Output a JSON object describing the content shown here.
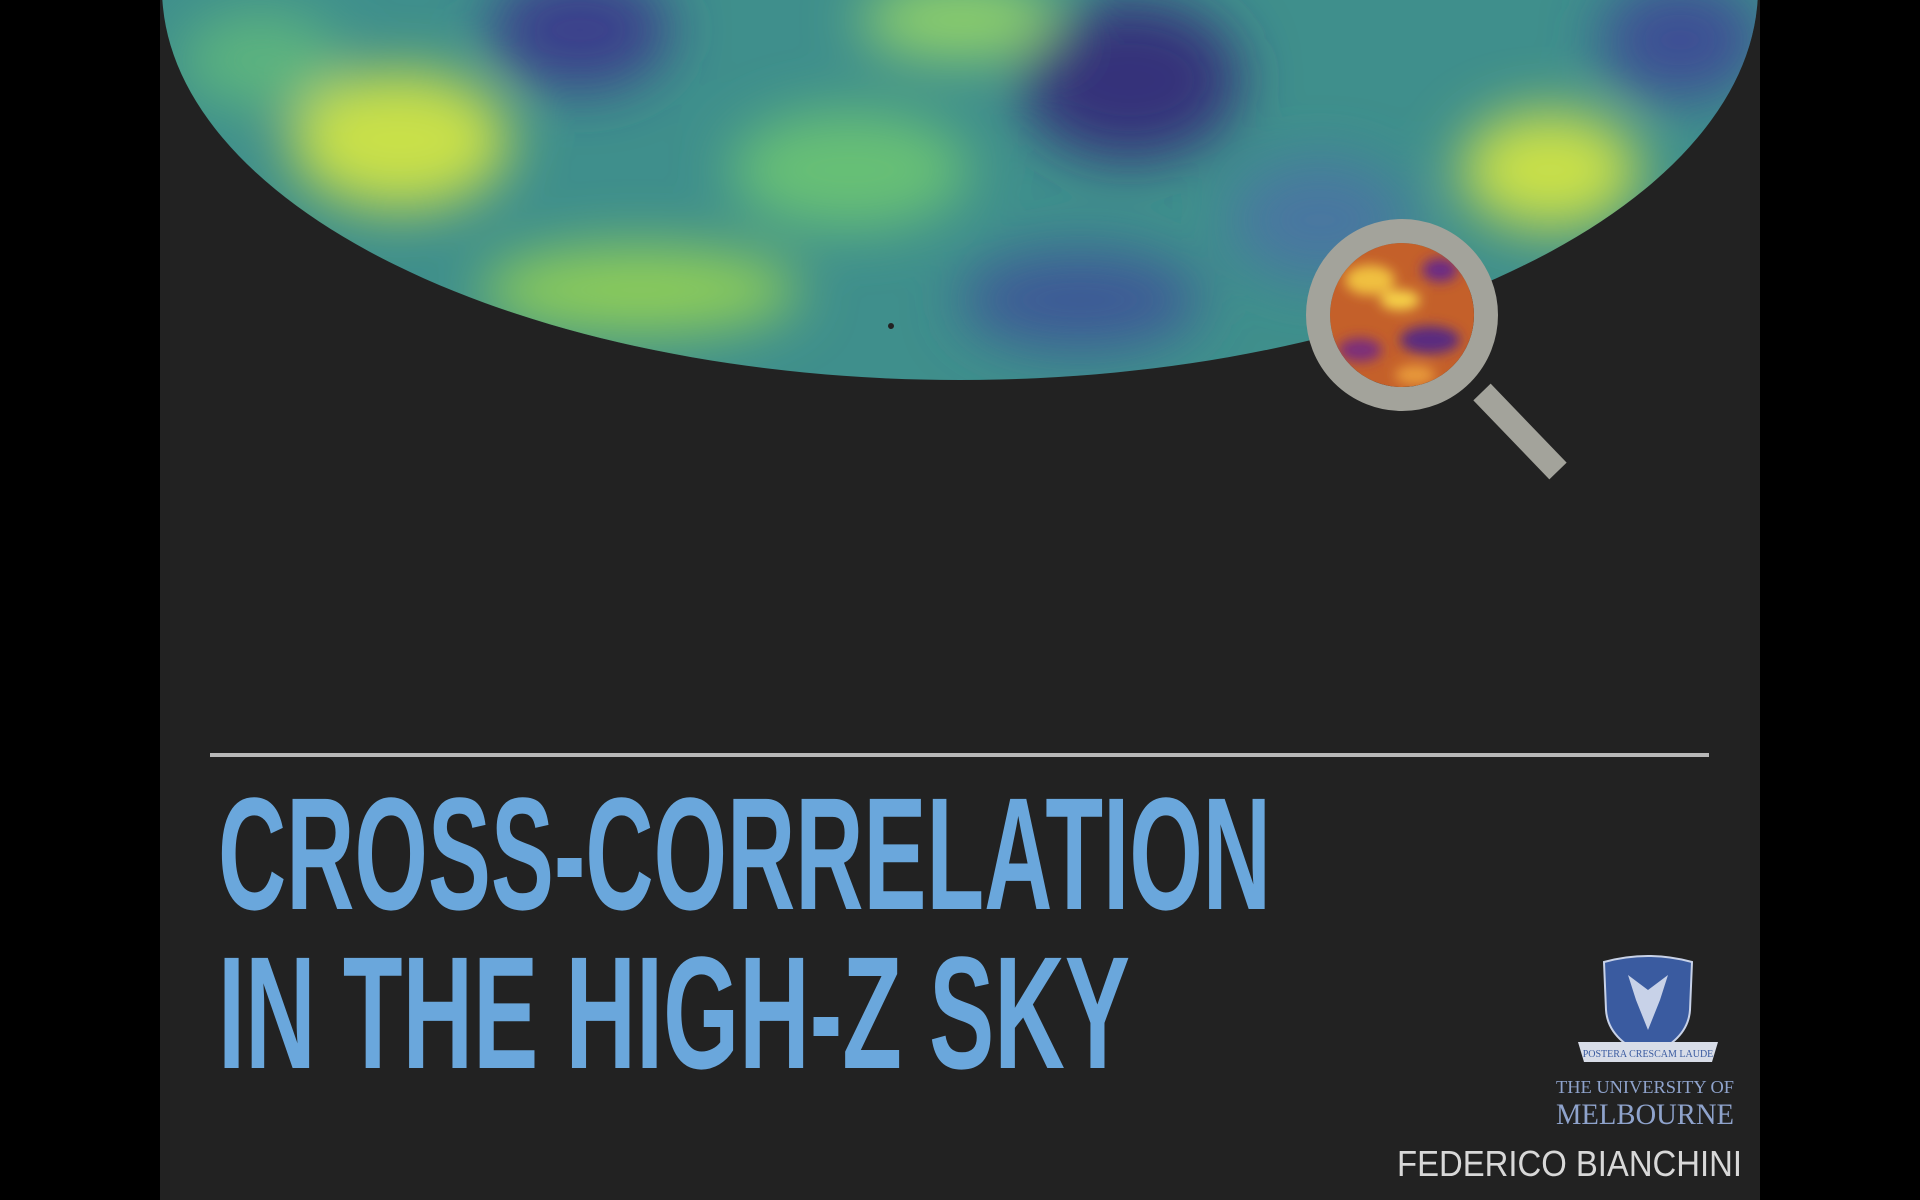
{
  "slide": {
    "title_lines": [
      "CROSS-CORRELATION",
      "IN THE HIGH-Z SKY"
    ],
    "logo": {
      "motto": "POSTERA CRESCAM LAUDE",
      "line1": "THE UNIVERSITY OF",
      "line2": "MELBOURNE"
    },
    "author": "FEDERICO BIANCHINI"
  }
}
